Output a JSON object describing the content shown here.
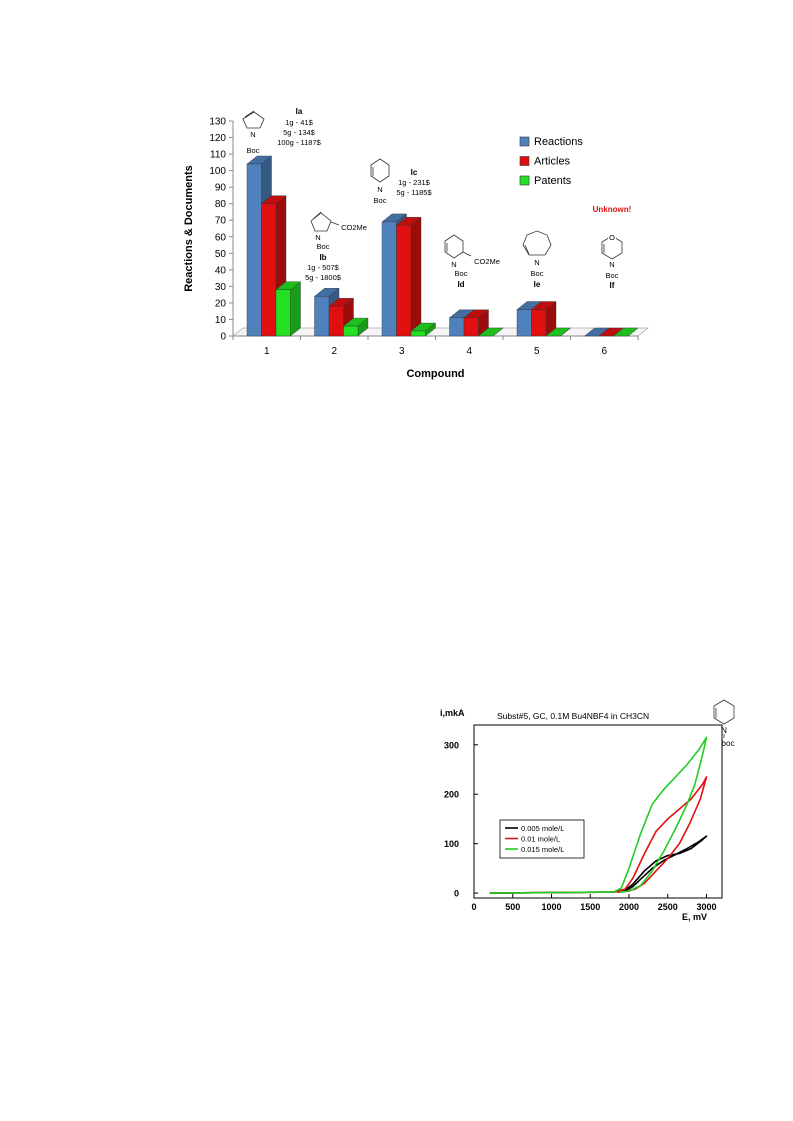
{
  "chart_data": [
    {
      "type": "bar",
      "ylabel": "Reactions & Documents",
      "xlabel": "Compound",
      "ylim": [
        0,
        130
      ],
      "yticks": [
        0,
        10,
        20,
        30,
        40,
        50,
        60,
        70,
        80,
        90,
        100,
        110,
        120,
        130
      ],
      "categories": [
        "1",
        "2",
        "3",
        "4",
        "5",
        "6"
      ],
      "series": [
        {
          "name": "Reactions",
          "color": "#4f81bd",
          "values": [
            104,
            24,
            69,
            11,
            16,
            0
          ]
        },
        {
          "name": "Articles",
          "color": "#e01010",
          "values": [
            80,
            18,
            67,
            11,
            16,
            0
          ]
        },
        {
          "name": "Patents",
          "color": "#22e022",
          "values": [
            28,
            6,
            3,
            0,
            0,
            0
          ]
        }
      ],
      "legend_position": "top-right",
      "annotations": [
        {
          "id": "Ia",
          "structure_labels": [
            "N",
            "Boc"
          ],
          "price_lines": [
            "1g - 41$",
            "5g - 134$",
            "100g - 1187$"
          ]
        },
        {
          "id": "Ib",
          "structure_labels": [
            "N",
            "Boc",
            "CO2Me"
          ],
          "price_lines": [
            "1g - 507$",
            "5g - 1800$"
          ]
        },
        {
          "id": "Ic",
          "structure_labels": [
            "N",
            "Boc"
          ],
          "price_lines": [
            "1g - 231$",
            "5g - 1185$"
          ]
        },
        {
          "id": "Id",
          "structure_labels": [
            "N",
            "Boc",
            "CO2Me"
          ],
          "price_lines": []
        },
        {
          "id": "Ie",
          "structure_labels": [
            "N",
            "Boc"
          ],
          "price_lines": []
        },
        {
          "id": "If",
          "structure_labels": [
            "O",
            "N",
            "Boc"
          ],
          "price_lines": []
        }
      ],
      "unknown_label": "Unknown!",
      "unknown_color": "#e01010"
    },
    {
      "type": "line",
      "title": "Subst#5, GC, 0.1M Bu4NBF4 in CH3CN",
      "ylabel": "i,mkA",
      "xlabel": "E, mV",
      "xlim": [
        0,
        3200
      ],
      "ylim": [
        -10,
        340
      ],
      "xticks": [
        0,
        500,
        1000,
        1500,
        2000,
        2500,
        3000
      ],
      "yticks": [
        0,
        100,
        200,
        300
      ],
      "structure_labels": [
        "N",
        "boc"
      ],
      "legend_position": "lower-left",
      "series": [
        {
          "name": "0.005 mole/L",
          "color": "#000000",
          "x": [
            200,
            1000,
            1800,
            1950,
            2050,
            2200,
            2350,
            2500,
            2650,
            2800,
            2950,
            3000,
            2900,
            2750,
            2600,
            2450,
            2300,
            2150,
            2050,
            1950,
            1850
          ],
          "y": [
            0,
            1,
            2,
            6,
            18,
            45,
            65,
            76,
            80,
            90,
            108,
            115,
            104,
            90,
            78,
            66,
            50,
            28,
            13,
            4,
            2
          ]
        },
        {
          "name": "0.01 mole/L",
          "color": "#e01010",
          "x": [
            200,
            1000,
            1800,
            1950,
            2050,
            2200,
            2350,
            2500,
            2650,
            2800,
            2950,
            3000,
            2920,
            2780,
            2650,
            2500,
            2350,
            2200,
            2080,
            1950,
            1850
          ],
          "y": [
            0,
            1,
            2,
            8,
            30,
            80,
            125,
            150,
            170,
            190,
            220,
            235,
            190,
            140,
            100,
            70,
            45,
            20,
            8,
            3,
            2
          ]
        },
        {
          "name": "0.015 mole/L",
          "color": "#22cc22",
          "x": [
            200,
            1000,
            1800,
            1900,
            2000,
            2150,
            2300,
            2450,
            2600,
            2750,
            2900,
            3000,
            2950,
            2850,
            2750,
            2600,
            2450,
            2300,
            2150,
            2000,
            1880
          ],
          "y": [
            0,
            1,
            2,
            10,
            50,
            120,
            180,
            210,
            235,
            260,
            290,
            315,
            280,
            220,
            180,
            130,
            85,
            45,
            15,
            4,
            2
          ]
        }
      ]
    }
  ]
}
